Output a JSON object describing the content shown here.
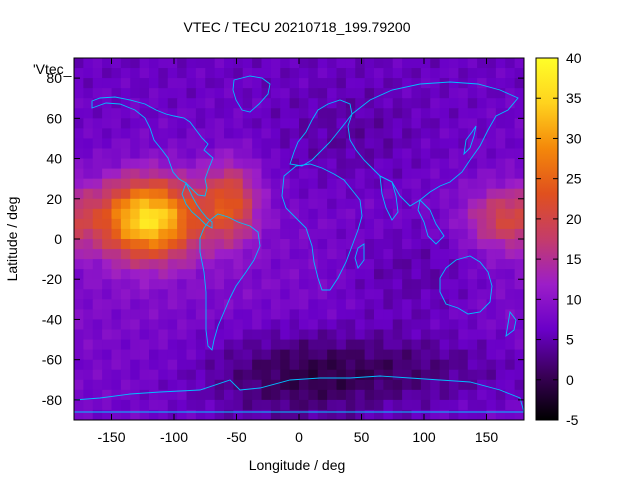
{
  "chart_data": {
    "type": "heatmap",
    "title": "VTEC / TECU 20210718_199.79200",
    "xlabel": "Longitude / deg",
    "ylabel": "Latitude / deg",
    "plot_key_label": "'Vtec_",
    "xlim": [
      -180,
      180
    ],
    "ylim": [
      -90,
      90
    ],
    "x_ticks": [
      -150,
      -100,
      -50,
      0,
      50,
      100,
      150
    ],
    "y_ticks": [
      -80,
      -60,
      -40,
      -20,
      0,
      20,
      40,
      60,
      80
    ],
    "colorbar": {
      "range": [
        -5,
        40
      ],
      "ticks": [
        -5,
        0,
        5,
        10,
        15,
        20,
        25,
        30,
        35,
        40
      ],
      "colormap": [
        "#000000",
        "#3a0058",
        "#6a00c8",
        "#9c1ec8",
        "#c43c6a",
        "#e0501e",
        "#f4880a",
        "#ffd21e",
        "#ffff28"
      ]
    },
    "field_features": [
      {
        "feature": "primary peak",
        "lon": -120,
        "lat": 10,
        "value": 38
      },
      {
        "feature": "secondary peak",
        "lon": -55,
        "lat": 18,
        "value": 25
      },
      {
        "feature": "pacific enhancement",
        "lon": 165,
        "lat": 10,
        "value": 20
      },
      {
        "feature": "minimum region",
        "lon": 0,
        "lat": -68,
        "value": 0
      }
    ],
    "coastline_color": "#00bfff",
    "grid": false
  }
}
